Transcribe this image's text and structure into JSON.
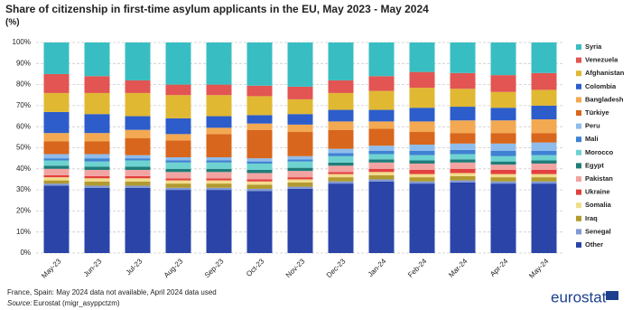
{
  "chart_data": {
    "type": "stacked_bar_percent",
    "title": "Share of citizenship in first-time asylum applicants in the EU, May 2023 - May 2024",
    "subtitle": "(%)",
    "note": "France, Spain: May 2024 data not available, April 2024 data used",
    "source_label": "Source:",
    "source": "Eurostat (migr_asyppctzm)",
    "logo": "eurostat",
    "categories": [
      "May-23",
      "Jun-23",
      "Jul-23",
      "Aug-23",
      "Sep-23",
      "Oct-23",
      "Nov-23",
      "Dec-23",
      "Jan-24",
      "Feb-24",
      "Mar-24",
      "Apr-24",
      "May-24"
    ],
    "ylim": [
      0,
      100
    ],
    "yticks": [
      {
        "value": 0,
        "label": "0%"
      },
      {
        "value": 10,
        "label": "10%"
      },
      {
        "value": 20,
        "label": "20%"
      },
      {
        "value": 30,
        "label": "30%"
      },
      {
        "value": 40,
        "label": "40%"
      },
      {
        "value": 50,
        "label": "50%"
      },
      {
        "value": 60,
        "label": "60%"
      },
      {
        "value": 70,
        "label": "70%"
      },
      {
        "value": 80,
        "label": "80%"
      },
      {
        "value": 90,
        "label": "90%"
      },
      {
        "value": 100,
        "label": "100%"
      }
    ],
    "grid": true,
    "legend": "right",
    "series": [
      {
        "name": "Other",
        "color": "#2a44a8",
        "values": [
          32,
          31,
          31,
          30,
          30,
          29.5,
          30.5,
          33,
          34,
          33,
          33.5,
          33,
          33
        ]
      },
      {
        "name": "Senegal",
        "color": "#8099d6",
        "values": [
          1,
          1,
          1,
          1,
          1,
          1,
          1,
          1,
          1,
          1,
          1,
          1,
          1
        ]
      },
      {
        "name": "Iraq",
        "color": "#b39a30",
        "values": [
          1.5,
          2,
          2,
          2,
          2,
          2,
          2,
          2,
          2,
          2,
          2,
          2,
          2
        ]
      },
      {
        "name": "Somalia",
        "color": "#f2dc8c",
        "values": [
          1.5,
          1.5,
          1.5,
          1.5,
          1.5,
          1.5,
          1.5,
          1.5,
          1.5,
          1.5,
          1.5,
          1.5,
          1.5
        ]
      },
      {
        "name": "Ukraine",
        "color": "#e2403e",
        "values": [
          1,
          1,
          1,
          1,
          1,
          1,
          1,
          1,
          1.5,
          2,
          2,
          2,
          2
        ]
      },
      {
        "name": "Pakistan",
        "color": "#f2a4a2",
        "values": [
          3,
          3,
          3,
          3,
          3,
          3,
          3,
          3,
          3,
          3,
          3,
          2.5,
          3
        ]
      },
      {
        "name": "Egypt",
        "color": "#1f7d7a",
        "values": [
          1.5,
          1.5,
          1.5,
          1.5,
          1.5,
          1.5,
          1.5,
          1.5,
          1.5,
          1.5,
          1.5,
          1.5,
          1.5
        ]
      },
      {
        "name": "Morocco",
        "color": "#6ed3d0",
        "values": [
          2.5,
          2.5,
          3,
          3,
          3,
          3,
          3,
          3,
          2.5,
          2.5,
          2.5,
          2.5,
          2.5
        ]
      },
      {
        "name": "Mali",
        "color": "#3f82d2",
        "values": [
          1,
          1.5,
          1,
          1,
          1,
          1,
          1,
          1.5,
          1.5,
          2,
          2,
          2.5,
          2
        ]
      },
      {
        "name": "Peru",
        "color": "#8ebcec",
        "values": [
          2,
          2,
          1.5,
          1.5,
          1.5,
          1.5,
          1.5,
          2,
          2.5,
          3,
          3,
          3.5,
          4
        ]
      },
      {
        "name": "Türkiye",
        "color": "#d8661c",
        "values": [
          6,
          6,
          8,
          8,
          11,
          13.5,
          11.5,
          9,
          8,
          6,
          5,
          5,
          4.5
        ]
      },
      {
        "name": "Bangladesh",
        "color": "#f3a852",
        "values": [
          4,
          4,
          4,
          3,
          3,
          3,
          3.5,
          4,
          3.5,
          5,
          6,
          6,
          6.5
        ]
      },
      {
        "name": "Colombia",
        "color": "#2c5dca",
        "values": [
          10,
          9,
          6.5,
          7.5,
          5.5,
          4,
          5,
          5.5,
          5.5,
          6.5,
          6.5,
          6,
          6.5
        ]
      },
      {
        "name": "Afghanistan",
        "color": "#e0b832",
        "values": [
          9,
          10,
          11,
          11,
          10,
          9,
          7,
          8,
          9,
          9.5,
          8.5,
          7.5,
          7.5
        ]
      },
      {
        "name": "Venezuela",
        "color": "#e25552",
        "values": [
          9,
          8,
          6,
          5,
          5,
          5,
          6,
          6,
          7,
          7.5,
          7.5,
          8,
          8
        ]
      },
      {
        "name": "Syria",
        "color": "#38bec2",
        "values": [
          15,
          16,
          18,
          20,
          20,
          20.5,
          21,
          18,
          16,
          14,
          14.5,
          15.5,
          14.5
        ]
      }
    ]
  }
}
